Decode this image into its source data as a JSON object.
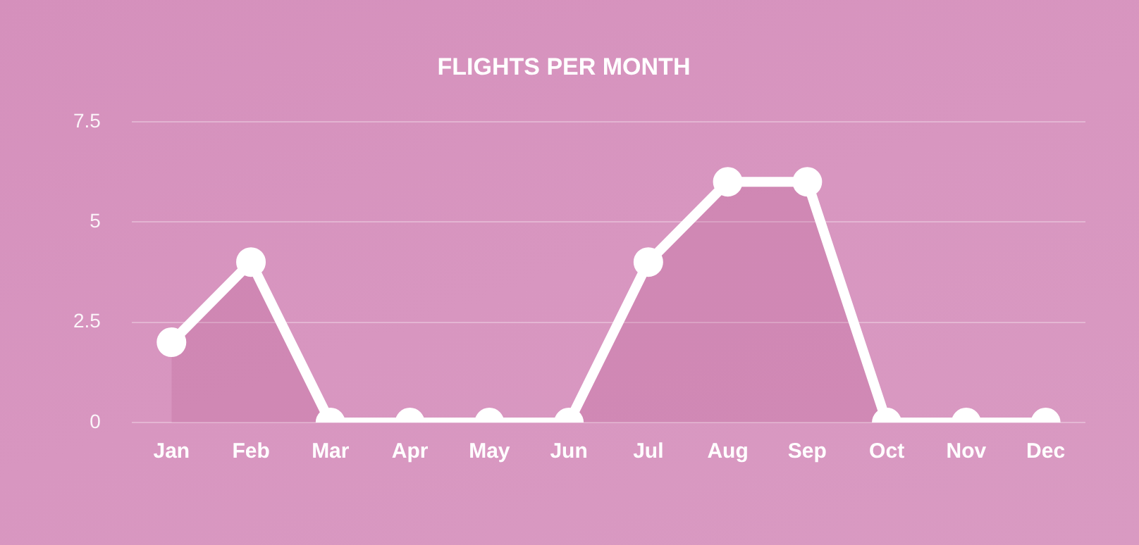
{
  "chart_data": {
    "type": "area",
    "title": "FLIGHTS PER MONTH",
    "categories": [
      "Jan",
      "Feb",
      "Mar",
      "Apr",
      "May",
      "Jun",
      "Jul",
      "Aug",
      "Sep",
      "Oct",
      "Nov",
      "Dec"
    ],
    "values": [
      2,
      4,
      0,
      0,
      0,
      0,
      4,
      6,
      6,
      0,
      0,
      0
    ],
    "color": "#ffffff",
    "ylim": [
      0,
      7.5
    ],
    "yticks": [
      0,
      2.5,
      5,
      7.5
    ],
    "grid": "y",
    "marker": "circle",
    "line_style": "solid"
  }
}
